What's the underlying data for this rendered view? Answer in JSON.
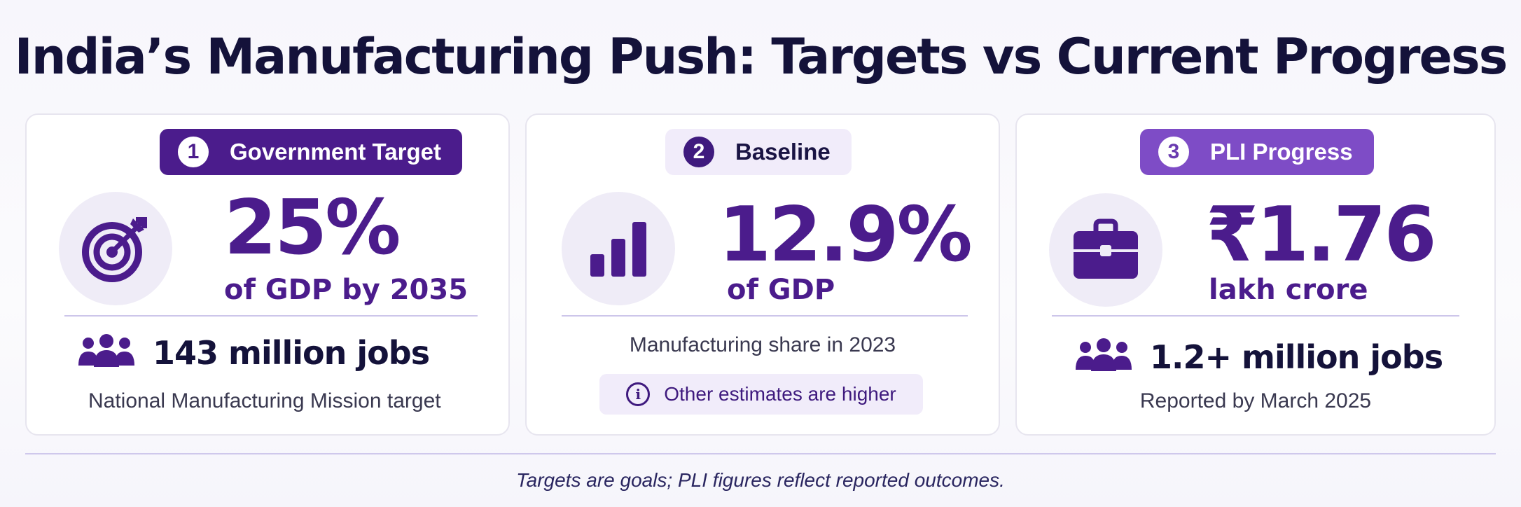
{
  "title": "India’s Manufacturing Push: Targets vs Current Progress",
  "cards": [
    {
      "badge_number": "1",
      "badge_label": "Government Target",
      "icon": "target-icon",
      "big_value": "25%",
      "sub_value": "of GDP by 2035",
      "jobs": "143 million jobs",
      "caption": "National Manufacturing Mission target"
    },
    {
      "badge_number": "2",
      "badge_label": "Baseline",
      "icon": "bar-chart-icon",
      "big_value": "12.9%",
      "sub_value": "of GDP",
      "caption": "Manufacturing share in 2023",
      "note": "Other estimates are higher"
    },
    {
      "badge_number": "3",
      "badge_label": "PLI Progress",
      "icon": "briefcase-icon",
      "big_value": "₹1.76",
      "sub_value": "lakh crore",
      "jobs": "1.2+ million jobs",
      "caption": "Reported by March 2025"
    }
  ],
  "footer": "Targets are goals; PLI figures reflect reported outcomes.",
  "colors": {
    "primary": "#4b1c8c",
    "accent": "#7e4cc6",
    "light": "#f1ecfa",
    "text": "#14123a"
  }
}
